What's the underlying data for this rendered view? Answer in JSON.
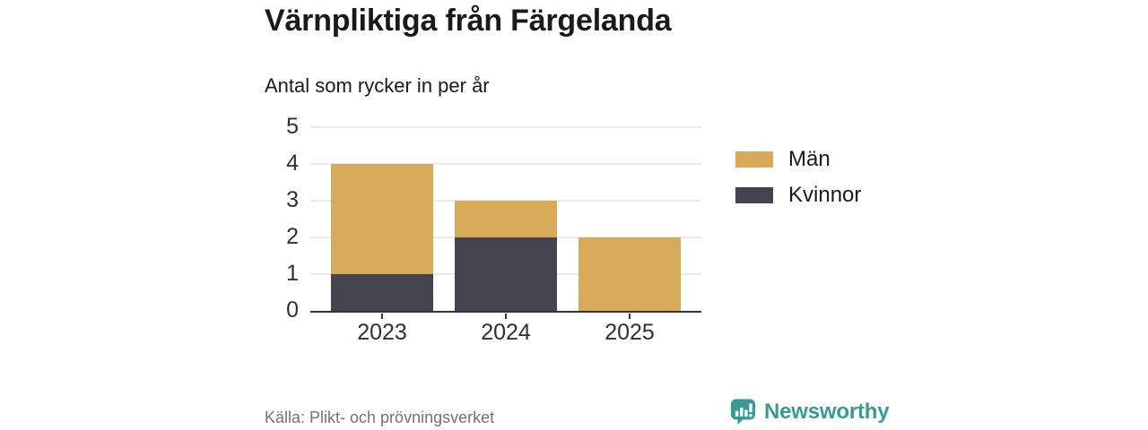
{
  "header": {
    "title": "Värnpliktiga från Färgelanda",
    "subtitle": "Antal som rycker in per år"
  },
  "chart_data": {
    "type": "bar",
    "stacked": true,
    "title": "Värnpliktiga från Färgelanda",
    "subtitle": "Antal som rycker in per år",
    "categories": [
      "2023",
      "2024",
      "2025"
    ],
    "series": [
      {
        "name": "Kvinnor",
        "color": "#454350",
        "values": [
          1,
          2,
          0
        ]
      },
      {
        "name": "Män",
        "color": "#d8ab5a",
        "values": [
          3,
          1,
          2
        ]
      }
    ],
    "totals": [
      4,
      3,
      2
    ],
    "xlabel": "",
    "ylabel": "",
    "ylim": [
      0,
      5
    ],
    "yticks": [
      0,
      1,
      2,
      3,
      4,
      5
    ],
    "grid": true,
    "legend_position": "right",
    "legend": [
      {
        "label": "Män",
        "color": "#d8ab5a"
      },
      {
        "label": "Kvinnor",
        "color": "#454350"
      }
    ]
  },
  "footer": {
    "source": "Källa: Plikt- och prövningsverket",
    "brand": "Newsworthy",
    "brand_color": "#389a92",
    "brand_icon": "newsworthy-speech-bubble-bar-chart-icon"
  },
  "colors": {
    "background": "#ffffff",
    "gridline": "#e9e9e9",
    "axis_line": "#35343c",
    "text_primary": "#1a1a1a",
    "text_muted": "#737373"
  }
}
